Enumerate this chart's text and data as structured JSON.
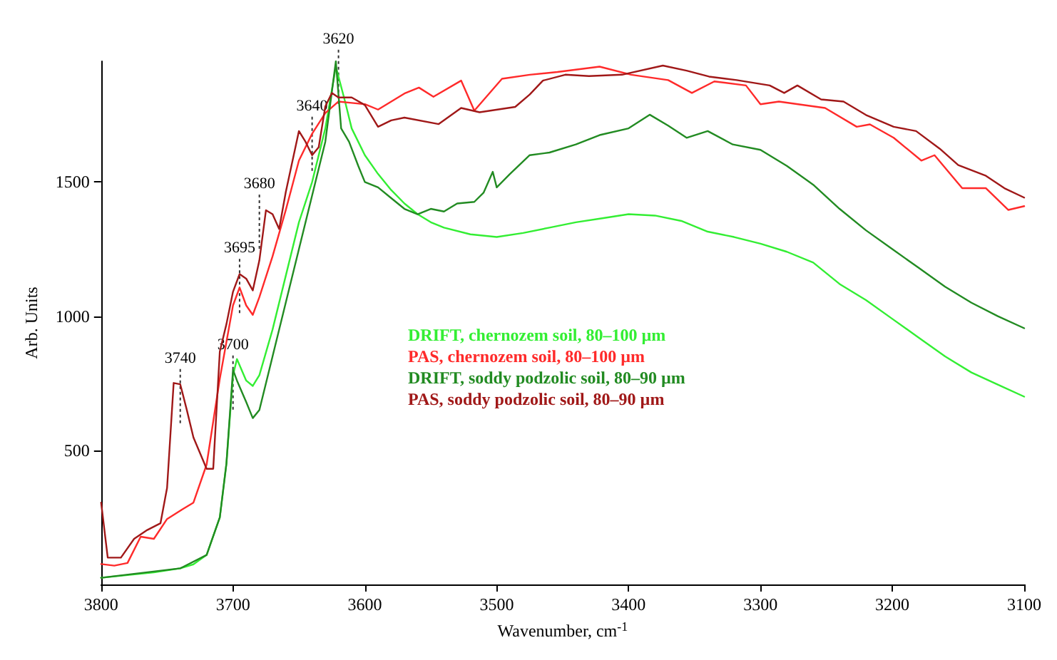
{
  "chart_data": {
    "type": "line",
    "xlabel": "Wavenumber, cm$^{-1}$",
    "ylabel": "Arb. Units",
    "xlim": [
      3800,
      3100
    ],
    "xticks": [
      3800,
      3700,
      3600,
      3500,
      3400,
      3300,
      3200,
      3100
    ],
    "ylim": [
      0,
      1950
    ],
    "yticks": [
      500,
      1000,
      1500
    ],
    "grid": false,
    "legend": "center",
    "marker": "none",
    "line_style": "solid",
    "annotations": [
      {
        "text": "3740",
        "x": 3740,
        "y": 750
      },
      {
        "text": "3700",
        "x": 3700,
        "y": 800
      },
      {
        "text": "3695",
        "x": 3695,
        "y": 1160
      },
      {
        "text": "3680",
        "x": 3680,
        "y": 1400
      },
      {
        "text": "3640",
        "x": 3640,
        "y": 1690
      },
      {
        "text": "3620",
        "x": 3620,
        "y": 1940
      }
    ],
    "series": [
      {
        "name": "DRIFT, chernozem soil, 80–100 µm",
        "color": "#33ee33",
        "x": [
          3800,
          3780,
          3760,
          3740,
          3730,
          3720,
          3710,
          3705,
          3700,
          3697,
          3690,
          3685,
          3680,
          3670,
          3660,
          3650,
          3640,
          3630,
          3622,
          3615,
          3610,
          3600,
          3590,
          3580,
          3570,
          3560,
          3550,
          3540,
          3520,
          3500,
          3480,
          3460,
          3440,
          3420,
          3400,
          3380,
          3360,
          3340,
          3320,
          3300,
          3280,
          3260,
          3240,
          3220,
          3200,
          3180,
          3160,
          3140,
          3120,
          3100
        ],
        "values": [
          25,
          35,
          45,
          60,
          75,
          110,
          250,
          450,
          780,
          840,
          760,
          740,
          780,
          950,
          1150,
          1350,
          1500,
          1700,
          1930,
          1800,
          1700,
          1600,
          1530,
          1470,
          1420,
          1380,
          1350,
          1330,
          1305,
          1295,
          1310,
          1330,
          1350,
          1365,
          1380,
          1375,
          1355,
          1315,
          1295,
          1270,
          1240,
          1200,
          1120,
          1060,
          990,
          920,
          850,
          790,
          745,
          700
        ]
      },
      {
        "name": "PAS, chernozem soil, 80–100 µm",
        "color": "#ff2a2a",
        "x": [
          3800,
          3790,
          3780,
          3770,
          3760,
          3750,
          3740,
          3730,
          3720,
          3710,
          3700,
          3695,
          3690,
          3685,
          3680,
          3670,
          3660,
          3650,
          3640,
          3630,
          3620,
          3610,
          3600,
          3590,
          3580,
          3570,
          3559,
          3548,
          3527,
          3517,
          3496,
          3475,
          3454,
          3422,
          3398,
          3370,
          3352,
          3335,
          3311,
          3300,
          3286,
          3251,
          3227,
          3217,
          3199,
          3178,
          3168,
          3147,
          3129,
          3112,
          3100
        ],
        "values": [
          76,
          70,
          80,
          178,
          170,
          244,
          275,
          305,
          447,
          767,
          1040,
          1107,
          1040,
          1005,
          1071,
          1223,
          1395,
          1580,
          1680,
          1757,
          1800,
          1795,
          1790,
          1770,
          1800,
          1830,
          1852,
          1818,
          1878,
          1766,
          1885,
          1900,
          1910,
          1930,
          1900,
          1880,
          1832,
          1875,
          1860,
          1790,
          1800,
          1776,
          1706,
          1715,
          1665,
          1580,
          1600,
          1477,
          1477,
          1396,
          1410
        ]
      },
      {
        "name": "DRIFT, soddy podzolic soil, 80–90 µm",
        "color": "#228b22",
        "x": [
          3800,
          3740,
          3720,
          3710,
          3705,
          3700,
          3697,
          3690,
          3685,
          3680,
          3670,
          3660,
          3650,
          3640,
          3630,
          3622,
          3618,
          3612,
          3605,
          3600,
          3590,
          3580,
          3570,
          3560,
          3550,
          3540,
          3530,
          3517,
          3510,
          3503,
          3500,
          3490,
          3475,
          3460,
          3440,
          3422,
          3400,
          3384,
          3370,
          3356,
          3340,
          3321,
          3300,
          3280,
          3260,
          3240,
          3220,
          3200,
          3180,
          3160,
          3140,
          3120,
          3100
        ],
        "values": [
          25,
          60,
          110,
          250,
          450,
          800,
          760,
          680,
          620,
          650,
          850,
          1050,
          1250,
          1450,
          1650,
          1950,
          1700,
          1650,
          1560,
          1500,
          1480,
          1440,
          1400,
          1380,
          1400,
          1390,
          1420,
          1426,
          1460,
          1538,
          1480,
          1530,
          1600,
          1610,
          1640,
          1675,
          1700,
          1751,
          1710,
          1665,
          1690,
          1640,
          1620,
          1560,
          1490,
          1400,
          1320,
          1250,
          1180,
          1110,
          1050,
          1000,
          955
        ]
      },
      {
        "name": "PAS, soddy podzolic soil, 80–90 µm",
        "color": "#a01818",
        "x": [
          3800,
          3795,
          3785,
          3775,
          3765,
          3755,
          3750,
          3745,
          3740,
          3735,
          3730,
          3720,
          3715,
          3710,
          3705,
          3700,
          3695,
          3690,
          3685,
          3680,
          3675,
          3670,
          3665,
          3660,
          3650,
          3645,
          3640,
          3635,
          3630,
          3625,
          3620,
          3610,
          3600,
          3590,
          3580,
          3570,
          3544,
          3527,
          3513,
          3486,
          3475,
          3465,
          3448,
          3430,
          3405,
          3374,
          3356,
          3339,
          3318,
          3293,
          3282,
          3272,
          3254,
          3237,
          3220,
          3199,
          3182,
          3164,
          3150,
          3129,
          3115,
          3100
        ],
        "values": [
          305,
          100,
          100,
          170,
          203,
          228,
          360,
          751,
          746,
          650,
          548,
          431,
          431,
          868,
          970,
          1091,
          1157,
          1140,
          1096,
          1208,
          1395,
          1380,
          1325,
          1462,
          1690,
          1650,
          1600,
          1630,
          1782,
          1832,
          1815,
          1815,
          1787,
          1706,
          1730,
          1740,
          1716,
          1776,
          1760,
          1780,
          1826,
          1878,
          1900,
          1895,
          1900,
          1934,
          1915,
          1893,
          1880,
          1860,
          1832,
          1860,
          1808,
          1800,
          1750,
          1706,
          1690,
          1624,
          1563,
          1523,
          1477,
          1442
        ]
      }
    ]
  }
}
